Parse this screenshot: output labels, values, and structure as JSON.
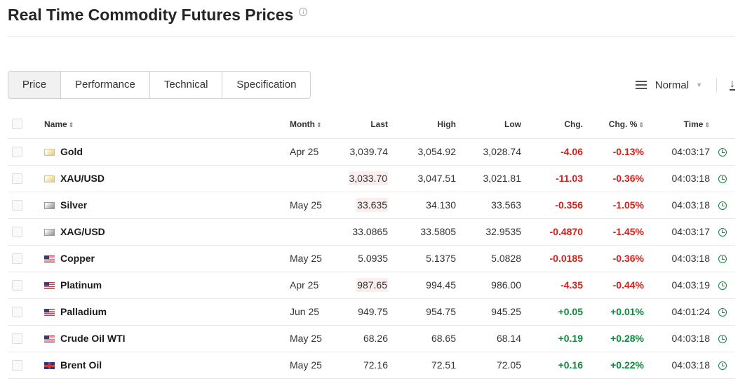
{
  "title": "Real Time Commodity Futures Prices",
  "tabs": [
    {
      "label": "Price",
      "active": true
    },
    {
      "label": "Performance"
    },
    {
      "label": "Technical"
    },
    {
      "label": "Specification"
    }
  ],
  "view_select": {
    "value": "Normal"
  },
  "columns": {
    "name": "Name",
    "month": "Month",
    "last": "Last",
    "high": "High",
    "low": "Low",
    "chg": "Chg.",
    "chg_pct": "Chg. %",
    "time": "Time"
  },
  "colors": {
    "negative": "#d91e18",
    "positive": "#0e8a3a"
  },
  "rows": [
    {
      "icon": "gold",
      "name": "Gold",
      "month": "Apr 25",
      "last": "3,039.74",
      "high": "3,054.92",
      "low": "3,028.74",
      "chg": "-4.06",
      "chg_pct": "-0.13%",
      "time": "04:03:17",
      "dir": "neg"
    },
    {
      "icon": "gold",
      "name": "XAU/USD",
      "month": "",
      "last": "3,033.70",
      "flash": true,
      "high": "3,047.51",
      "low": "3,021.81",
      "chg": "-11.03",
      "chg_pct": "-0.36%",
      "time": "04:03:18",
      "dir": "neg"
    },
    {
      "icon": "silver",
      "name": "Silver",
      "month": "May 25",
      "last": "33.635",
      "flash": true,
      "high": "34.130",
      "low": "33.563",
      "chg": "-0.356",
      "chg_pct": "-1.05%",
      "time": "04:03:18",
      "dir": "neg"
    },
    {
      "icon": "silver",
      "name": "XAG/USD",
      "month": "",
      "last": "33.0865",
      "high": "33.5805",
      "low": "32.9535",
      "chg": "-0.4870",
      "chg_pct": "-1.45%",
      "time": "04:03:17",
      "dir": "neg"
    },
    {
      "icon": "us",
      "name": "Copper",
      "month": "May 25",
      "last": "5.0935",
      "high": "5.1375",
      "low": "5.0828",
      "chg": "-0.0185",
      "chg_pct": "-0.36%",
      "time": "04:03:18",
      "dir": "neg"
    },
    {
      "icon": "us",
      "name": "Platinum",
      "month": "Apr 25",
      "last": "987.65",
      "flash": true,
      "high": "994.45",
      "low": "986.00",
      "chg": "-4.35",
      "chg_pct": "-0.44%",
      "time": "04:03:19",
      "dir": "neg"
    },
    {
      "icon": "us",
      "name": "Palladium",
      "month": "Jun 25",
      "last": "949.75",
      "high": "954.75",
      "low": "945.25",
      "chg": "+0.05",
      "chg_pct": "+0.01%",
      "time": "04:01:24",
      "dir": "pos"
    },
    {
      "icon": "us",
      "name": "Crude Oil WTI",
      "month": "May 25",
      "last": "68.26",
      "high": "68.65",
      "low": "68.14",
      "chg": "+0.19",
      "chg_pct": "+0.28%",
      "time": "04:03:18",
      "dir": "pos"
    },
    {
      "icon": "uk",
      "name": "Brent Oil",
      "month": "May 25",
      "last": "72.16",
      "high": "72.51",
      "low": "72.05",
      "chg": "+0.16",
      "chg_pct": "+0.22%",
      "time": "04:03:18",
      "dir": "pos"
    }
  ]
}
